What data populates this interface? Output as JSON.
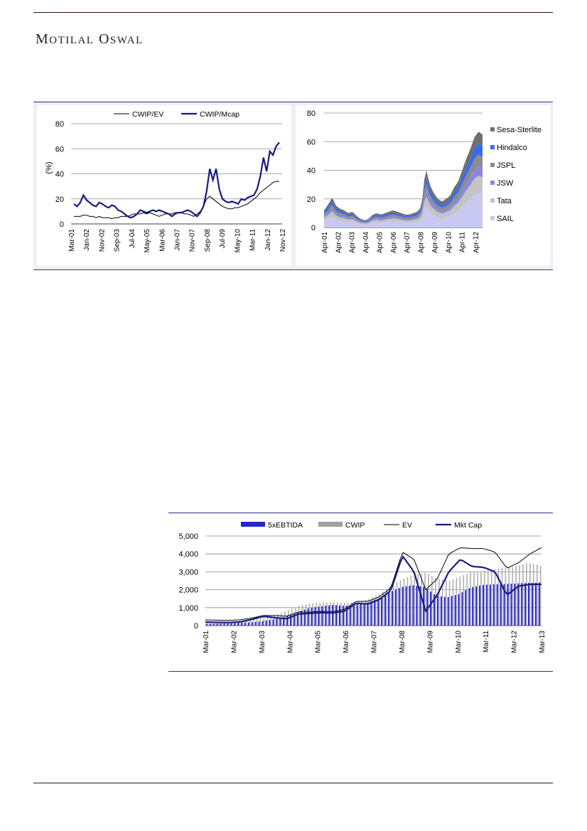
{
  "header": {
    "brand_first": "M",
    "brand_rest1": "OTILAL",
    "brand_second": "O",
    "brand_rest2": "SWAL"
  },
  "chart_data": [
    {
      "type": "line",
      "title": "",
      "ylabel": "(%)",
      "ylim": [
        0,
        80
      ],
      "yticks": [
        "0",
        "20",
        "40",
        "60",
        "80"
      ],
      "xticks": [
        "Mar-01",
        "Jan-02",
        "Nov-02",
        "Sep-03",
        "Jul-04",
        "May-05",
        "Mar-06",
        "Jan-07",
        "Nov-07",
        "Sep-08",
        "Jul-09",
        "May-10",
        "Mar-11",
        "Jan-12",
        "Nov-12"
      ],
      "series": [
        {
          "name": "CWIP/EV",
          "color": "#000000",
          "values": [
            6,
            6,
            6,
            7,
            7,
            6,
            6,
            5,
            6,
            5,
            5,
            5,
            4,
            5,
            5,
            6,
            6,
            6,
            7,
            8,
            8,
            8,
            9,
            8,
            9,
            8,
            7,
            6,
            7,
            8,
            8,
            8,
            9,
            9,
            9,
            8,
            8,
            7,
            6,
            8,
            10,
            14,
            20,
            22,
            20,
            18,
            16,
            14,
            13,
            12,
            12,
            13,
            13,
            14,
            15,
            16,
            18,
            20,
            22,
            25,
            27,
            29,
            31,
            33,
            34,
            34
          ]
        },
        {
          "name": "CWIP/Mcap",
          "color": "#1a1a80",
          "values": [
            16,
            14,
            17,
            23,
            19,
            17,
            15,
            14,
            17,
            16,
            14,
            13,
            15,
            14,
            11,
            10,
            8,
            6,
            5,
            6,
            8,
            11,
            10,
            9,
            10,
            11,
            10,
            11,
            10,
            9,
            8,
            6,
            8,
            9,
            9,
            10,
            11,
            10,
            8,
            6,
            9,
            14,
            26,
            44,
            35,
            44,
            28,
            20,
            18,
            17,
            18,
            17,
            16,
            20,
            19,
            21,
            22,
            23,
            28,
            38,
            53,
            42,
            58,
            55,
            62,
            65
          ]
        }
      ]
    },
    {
      "type": "area",
      "title": "",
      "ylabel": "",
      "ylim": [
        0,
        80
      ],
      "yticks": [
        "0",
        "20",
        "40",
        "60",
        "80"
      ],
      "xticks": [
        "Apr-01",
        "Apr-02",
        "Apr-03",
        "Apr-04",
        "Apr-05",
        "Apr-06",
        "Apr-07",
        "Apr-08",
        "Apr-09",
        "Apr-10",
        "Apr-11",
        "Apr-12"
      ],
      "legend": [
        "Sesa-Sterlite",
        "Hindalco",
        "JSPL",
        "JSW",
        "Tata",
        "SAIL"
      ],
      "legend_colors": [
        "#6e6e6e",
        "#3a6be8",
        "#8c8c8c",
        "#8a87e0",
        "#c4c4c4",
        "#c8c8f2"
      ],
      "total": [
        12,
        16,
        21,
        15,
        13,
        12,
        10,
        11,
        8,
        6,
        5,
        6,
        9,
        10,
        9,
        10,
        11,
        12,
        11,
        10,
        9,
        9,
        10,
        11,
        15,
        42,
        30,
        24,
        20,
        18,
        20,
        22,
        28,
        32,
        40,
        48,
        55,
        63,
        67,
        65
      ]
    },
    {
      "type": "bar+line",
      "title": "",
      "ylabel": "",
      "ylim": [
        0,
        5000
      ],
      "yticks": [
        "0",
        "1,000",
        "2,000",
        "3,000",
        "4,000",
        "5,000"
      ],
      "xticks": [
        "Mar-01",
        "Mar-02",
        "Mar-03",
        "Mar-04",
        "Mar-05",
        "Mar-06",
        "Mar-07",
        "Mar-08",
        "Mar-09",
        "Mar-10",
        "Mar-11",
        "Mar-12",
        "Mar-13"
      ],
      "legend": [
        "5xEBTIDA",
        "CWIP",
        "EV",
        "Mkt Cap"
      ],
      "legend_colors": [
        "#2626d0",
        "#a0a0a0",
        "#000000",
        "#1a1a80"
      ],
      "ebitda": [
        100,
        110,
        120,
        150,
        190,
        260,
        360,
        520,
        780,
        980,
        1080,
        1150,
        1100,
        1160,
        1280,
        1520,
        1880,
        2150,
        2250,
        2150,
        1680,
        1580,
        1760,
        2120,
        2260,
        2300,
        2320,
        2350,
        2380,
        2400
      ],
      "cwip_total": [
        180,
        200,
        230,
        290,
        360,
        460,
        620,
        860,
        1120,
        1250,
        1280,
        1300,
        1260,
        1330,
        1480,
        1780,
        2220,
        2620,
        2850,
        2950,
        2620,
        2500,
        2750,
        3000,
        3050,
        3150,
        3250,
        3350,
        3500,
        3350
      ],
      "ev": [
        320,
        300,
        290,
        320,
        420,
        560,
        560,
        520,
        750,
        750,
        800,
        780,
        900,
        1350,
        1350,
        1600,
        2100,
        4100,
        3700,
        2000,
        2600,
        4000,
        4350,
        4300,
        4300,
        4100,
        3200,
        3500,
        4000,
        4350
      ],
      "mktcap": [
        200,
        180,
        170,
        200,
        340,
        520,
        440,
        380,
        640,
        680,
        720,
        700,
        800,
        1250,
        1200,
        1450,
        1950,
        3900,
        3000,
        800,
        1700,
        3000,
        3700,
        3300,
        3250,
        3000,
        1700,
        2200,
        2300,
        2300
      ]
    }
  ]
}
